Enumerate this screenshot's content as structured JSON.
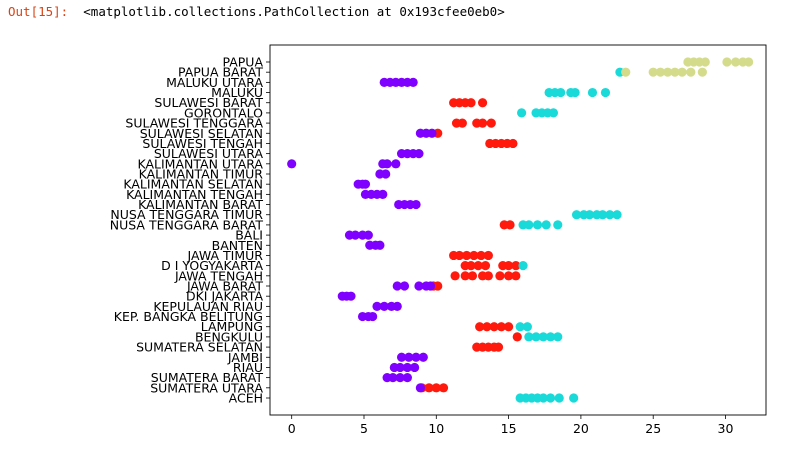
{
  "cell": {
    "prompt": "Out[15]:",
    "output": "<matplotlib.collections.PathCollection at 0x193cfee0eb0>"
  },
  "chart_data": {
    "type": "scatter",
    "xlim": [
      -1.5,
      32.8
    ],
    "x_ticks": [
      0,
      5,
      10,
      15,
      20,
      25,
      30
    ],
    "categories": [
      "ACEH",
      "SUMATERA UTARA",
      "SUMATERA BARAT",
      "RIAU",
      "JAMBI",
      "SUMATERA SELATAN",
      "BENGKULU",
      "LAMPUNG",
      "KEP. BANGKA BELITUNG",
      "KEPULAUAN RIAU",
      "DKI JAKARTA",
      "JAWA BARAT",
      "JAWA TENGAH",
      "D I YOGYAKARTA",
      "JAWA TIMUR",
      "BANTEN",
      "BALI",
      "NUSA TENGGARA BARAT",
      "NUSA TENGGARA TIMUR",
      "KALIMANTAN BARAT",
      "KALIMANTAN TENGAH",
      "KALIMANTAN SELATAN",
      "KALIMANTAN TIMUR",
      "KALIMANTAN UTARA",
      "SULAWESI UTARA",
      "SULAWESI TENGAH",
      "SULAWESI SELATAN",
      "SULAWESI TENGGARA",
      "GORONTALO",
      "SULAWESI BARAT",
      "MALUKU",
      "MALUKU UTARA",
      "PAPUA BARAT",
      "PAPUA"
    ],
    "color_scale": {
      "purple": "#8000ff",
      "red": "#ff1a0d",
      "cyan": "#1ad9d9",
      "khaki": "#d4dc8c"
    },
    "points": [
      {
        "cat": "ACEH",
        "x": [
          15.8,
          16.2,
          16.6,
          17.0,
          17.4,
          17.9,
          18.5,
          19.5
        ],
        "color": "cyan"
      },
      {
        "cat": "SUMATERA UTARA",
        "x": [
          9.0,
          9.5,
          10.0,
          10.5
        ],
        "color": "red"
      },
      {
        "cat": "SUMATERA UTARA",
        "x": [
          8.9
        ],
        "color": "purple"
      },
      {
        "cat": "SUMATERA BARAT",
        "x": [
          6.6,
          7.0,
          7.5,
          8.0
        ],
        "color": "purple"
      },
      {
        "cat": "RIAU",
        "x": [
          7.1,
          7.5,
          8.0,
          8.5
        ],
        "color": "purple"
      },
      {
        "cat": "JAMBI",
        "x": [
          7.6,
          8.1,
          8.6,
          9.1
        ],
        "color": "purple"
      },
      {
        "cat": "SUMATERA SELATAN",
        "x": [
          12.8,
          13.2,
          13.6,
          14.0,
          14.3
        ],
        "color": "red"
      },
      {
        "cat": "BENGKULU",
        "x": [
          15.6
        ],
        "color": "red"
      },
      {
        "cat": "BENGKULU",
        "x": [
          16.4,
          16.9,
          17.4,
          17.9,
          18.4
        ],
        "color": "cyan"
      },
      {
        "cat": "LAMPUNG",
        "x": [
          13.0,
          13.5,
          14.0,
          14.5,
          15.0
        ],
        "color": "red"
      },
      {
        "cat": "LAMPUNG",
        "x": [
          15.8,
          16.3
        ],
        "color": "cyan"
      },
      {
        "cat": "KEP. BANGKA BELITUNG",
        "x": [
          4.9,
          5.3,
          5.6
        ],
        "color": "purple"
      },
      {
        "cat": "KEPULAUAN RIAU",
        "x": [
          5.9,
          6.4,
          6.9,
          7.3
        ],
        "color": "purple"
      },
      {
        "cat": "DKI JAKARTA",
        "x": [
          3.5,
          3.8,
          4.1
        ],
        "color": "purple"
      },
      {
        "cat": "JAWA BARAT",
        "x": [
          9.8,
          10.1
        ],
        "color": "red"
      },
      {
        "cat": "JAWA BARAT",
        "x": [
          7.3,
          7.8,
          8.8,
          9.3,
          9.6
        ],
        "color": "purple"
      },
      {
        "cat": "JAWA TENGAH",
        "x": [
          11.3,
          12.0,
          12.5,
          13.2,
          13.6,
          14.4,
          15.0,
          15.5
        ],
        "color": "red"
      },
      {
        "cat": "D I YOGYAKARTA",
        "x": [
          12.0,
          12.4,
          12.9,
          13.4,
          14.6,
          15.0,
          15.5
        ],
        "color": "red"
      },
      {
        "cat": "D I YOGYAKARTA",
        "x": [
          16.0
        ],
        "color": "cyan"
      },
      {
        "cat": "JAWA TIMUR",
        "x": [
          11.2,
          11.6,
          12.1,
          12.6,
          13.1,
          13.6
        ],
        "color": "red"
      },
      {
        "cat": "BANTEN",
        "x": [
          5.4,
          5.8,
          6.1
        ],
        "color": "purple"
      },
      {
        "cat": "BALI",
        "x": [
          4.0,
          4.4,
          4.9,
          5.3
        ],
        "color": "purple"
      },
      {
        "cat": "NUSA TENGGARA BARAT",
        "x": [
          14.7,
          15.1
        ],
        "color": "red"
      },
      {
        "cat": "NUSA TENGGARA BARAT",
        "x": [
          16.0,
          16.4,
          17.0,
          17.6,
          18.4
        ],
        "color": "cyan"
      },
      {
        "cat": "NUSA TENGGARA TIMUR",
        "x": [
          19.7,
          20.2,
          20.6,
          21.1,
          21.5,
          22.0,
          22.5
        ],
        "color": "cyan"
      },
      {
        "cat": "KALIMANTAN BARAT",
        "x": [
          7.4,
          7.8,
          8.2,
          8.6
        ],
        "color": "purple"
      },
      {
        "cat": "KALIMANTAN TENGAH",
        "x": [
          5.1,
          5.5,
          5.9,
          6.3
        ],
        "color": "purple"
      },
      {
        "cat": "KALIMANTAN SELATAN",
        "x": [
          4.6,
          4.9,
          5.1
        ],
        "color": "purple"
      },
      {
        "cat": "KALIMANTAN TIMUR",
        "x": [
          6.1,
          6.5
        ],
        "color": "purple"
      },
      {
        "cat": "KALIMANTAN UTARA",
        "x": [
          0.0,
          6.3,
          6.6,
          7.2
        ],
        "color": "purple"
      },
      {
        "cat": "SULAWESI UTARA",
        "x": [
          7.6,
          8.0,
          8.4,
          8.8
        ],
        "color": "purple"
      },
      {
        "cat": "SULAWESI TENGAH",
        "x": [
          13.7,
          14.1,
          14.5,
          14.9,
          15.3
        ],
        "color": "red"
      },
      {
        "cat": "SULAWESI SELATAN",
        "x": [
          10.1
        ],
        "color": "red"
      },
      {
        "cat": "SULAWESI SELATAN",
        "x": [
          8.9,
          9.3,
          9.7
        ],
        "color": "purple"
      },
      {
        "cat": "SULAWESI TENGGARA",
        "x": [
          11.4,
          11.8,
          12.8,
          13.2,
          13.8
        ],
        "color": "red"
      },
      {
        "cat": "GORONTALO",
        "x": [
          15.9,
          16.9,
          17.3,
          17.7,
          18.1
        ],
        "color": "cyan"
      },
      {
        "cat": "SULAWESI BARAT",
        "x": [
          11.2,
          11.6,
          12.0,
          12.4,
          13.2
        ],
        "color": "red"
      },
      {
        "cat": "MALUKU",
        "x": [
          17.8,
          18.2,
          18.6,
          19.3,
          19.6,
          20.8,
          21.7
        ],
        "color": "cyan"
      },
      {
        "cat": "MALUKU UTARA",
        "x": [
          6.4,
          6.8,
          7.2,
          7.6,
          8.0,
          8.4
        ],
        "color": "purple"
      },
      {
        "cat": "PAPUA BARAT",
        "x": [
          22.7
        ],
        "color": "cyan"
      },
      {
        "cat": "PAPUA BARAT",
        "x": [
          23.1,
          25.0,
          25.5,
          26.0,
          26.5,
          27.0,
          27.6,
          28.4
        ],
        "color": "khaki"
      },
      {
        "cat": "PAPUA",
        "x": [
          27.4,
          27.8,
          28.2,
          28.6,
          30.1,
          30.7,
          31.2,
          31.6
        ],
        "color": "khaki"
      }
    ]
  }
}
